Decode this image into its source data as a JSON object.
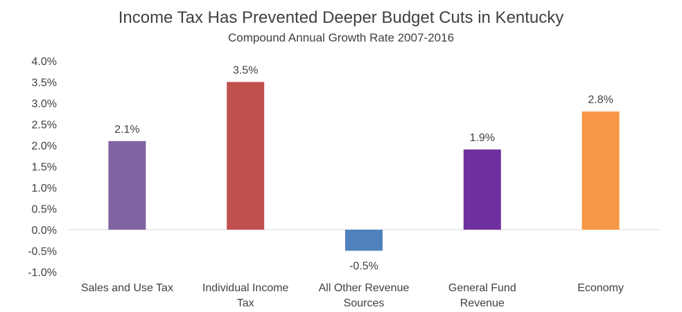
{
  "chart_data": {
    "type": "bar",
    "title": "Income Tax Has Prevented Deeper Budget Cuts in Kentucky",
    "subtitle": "Compound Annual Growth Rate 2007-2016",
    "categories": [
      "Sales and Use Tax",
      "Individual Income Tax",
      "All Other Revenue Sources",
      "General Fund Revenue",
      "Economy"
    ],
    "category_lines": [
      [
        "Sales and Use Tax"
      ],
      [
        "Individual Income",
        "Tax"
      ],
      [
        "All Other Revenue",
        "Sources"
      ],
      [
        "General Fund",
        "Revenue"
      ],
      [
        "Economy"
      ]
    ],
    "values": [
      2.1,
      3.5,
      -0.5,
      1.9,
      2.8
    ],
    "value_labels": [
      "2.1%",
      "3.5%",
      "-0.5%",
      "1.9%",
      "2.8%"
    ],
    "colors": [
      "#8064a2",
      "#c0504d",
      "#4f81bd",
      "#7030a0",
      "#f79646"
    ],
    "ylim": [
      -1.0,
      4.0
    ],
    "yticks": [
      4.0,
      3.5,
      3.0,
      2.5,
      2.0,
      1.5,
      1.0,
      0.5,
      0.0,
      -0.5,
      -1.0
    ],
    "ytick_labels": [
      "4.0%",
      "3.5%",
      "3.0%",
      "2.5%",
      "2.0%",
      "1.5%",
      "1.0%",
      "0.5%",
      "0.0%",
      "-0.5%",
      "-1.0%"
    ],
    "grid": false,
    "legend": "none",
    "axis_color": "#d9d9d9"
  }
}
